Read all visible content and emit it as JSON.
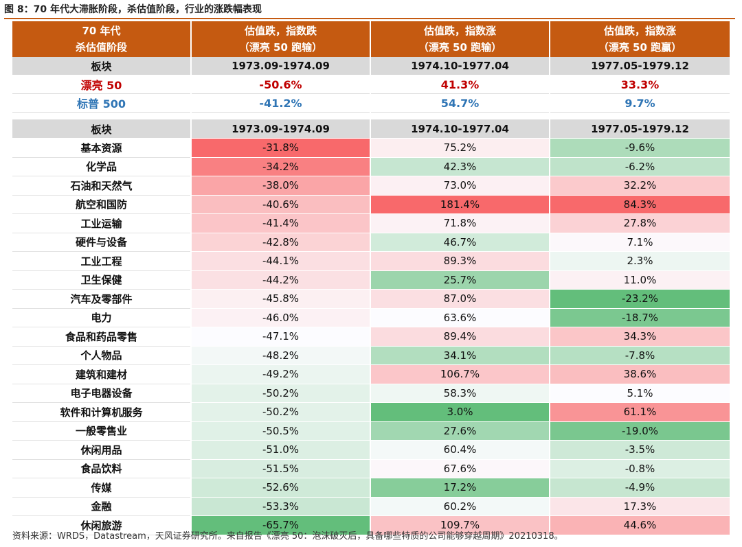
{
  "figure": {
    "title": "图 8：70 年代大滞胀阶段，杀估值阶段，行业的涨跌幅表现",
    "source": "资料来源：WRDS，Datastream，天风证券研究所。来自报告《漂亮 50：泡沫破灭后，具备哪些特质的公司能够穿越周期》20210318。"
  },
  "header": {
    "col0": [
      "70 年代",
      "杀估值阶段"
    ],
    "col1": [
      "估值跌，指数跌",
      "（漂亮 50 跑输）"
    ],
    "col2": [
      "估值跌，指数涨",
      "（漂亮 50 跑输）"
    ],
    "col3": [
      "估值跌，指数涨",
      "（漂亮 50 跑赢）"
    ]
  },
  "subheader": {
    "label": "板块",
    "periods": [
      "1973.09-1974.09",
      "1974.10-1977.04",
      "1977.05-1979.12"
    ]
  },
  "indices": [
    {
      "name": "漂亮 50",
      "values": [
        "-50.6%",
        "41.3%",
        "33.3%"
      ],
      "color": "#c00000"
    },
    {
      "name": "标普 500",
      "values": [
        "-41.2%",
        "54.7%",
        "9.7%"
      ],
      "color": "#2f75b5"
    }
  ],
  "colors": {
    "header_bg": "#c55a11",
    "subheader_bg": "#d9d9d9",
    "heat_high": "#f8696b",
    "heat_mid": "#fcfcff",
    "heat_low": "#63be7b"
  },
  "sectors": [
    {
      "name": "基本资源",
      "values": [
        "-31.8%",
        "75.2%",
        "-9.6%"
      ]
    },
    {
      "name": "化学品",
      "values": [
        "-34.2%",
        "42.3%",
        "-6.2%"
      ]
    },
    {
      "name": "石油和天然气",
      "values": [
        "-38.0%",
        "73.0%",
        "32.2%"
      ]
    },
    {
      "name": "航空和国防",
      "values": [
        "-40.6%",
        "181.4%",
        "84.3%"
      ]
    },
    {
      "name": "工业运输",
      "values": [
        "-41.4%",
        "71.8%",
        "27.8%"
      ]
    },
    {
      "name": "硬件与设备",
      "values": [
        "-42.8%",
        "46.7%",
        "7.1%"
      ]
    },
    {
      "name": "工业工程",
      "values": [
        "-44.1%",
        "89.3%",
        "2.3%"
      ]
    },
    {
      "name": "卫生保健",
      "values": [
        "-44.2%",
        "25.7%",
        "11.0%"
      ]
    },
    {
      "name": "汽车及零部件",
      "values": [
        "-45.8%",
        "87.0%",
        "-23.2%"
      ]
    },
    {
      "name": "电力",
      "values": [
        "-46.0%",
        "63.6%",
        "-18.7%"
      ]
    },
    {
      "name": "食品和药品零售",
      "values": [
        "-47.1%",
        "89.4%",
        "34.3%"
      ]
    },
    {
      "name": "个人物品",
      "values": [
        "-48.2%",
        "34.1%",
        "-7.8%"
      ]
    },
    {
      "name": "建筑和建材",
      "values": [
        "-49.2%",
        "106.7%",
        "38.6%"
      ]
    },
    {
      "name": "电子电器设备",
      "values": [
        "-50.2%",
        "58.3%",
        "5.1%"
      ]
    },
    {
      "name": "软件和计算机服务",
      "values": [
        "-50.2%",
        "3.0%",
        "61.1%"
      ]
    },
    {
      "name": "一般零售业",
      "values": [
        "-50.5%",
        "27.6%",
        "-19.0%"
      ]
    },
    {
      "name": "休闲用品",
      "values": [
        "-51.0%",
        "60.4%",
        "-3.5%"
      ]
    },
    {
      "name": "食品饮料",
      "values": [
        "-51.5%",
        "67.6%",
        "-0.8%"
      ]
    },
    {
      "name": "传媒",
      "values": [
        "-52.6%",
        "17.2%",
        "-4.9%"
      ]
    },
    {
      "name": "金融",
      "values": [
        "-53.3%",
        "60.2%",
        "17.3%"
      ]
    },
    {
      "name": "休闲旅游",
      "values": [
        "-65.7%",
        "109.7%",
        "44.6%"
      ]
    }
  ]
}
